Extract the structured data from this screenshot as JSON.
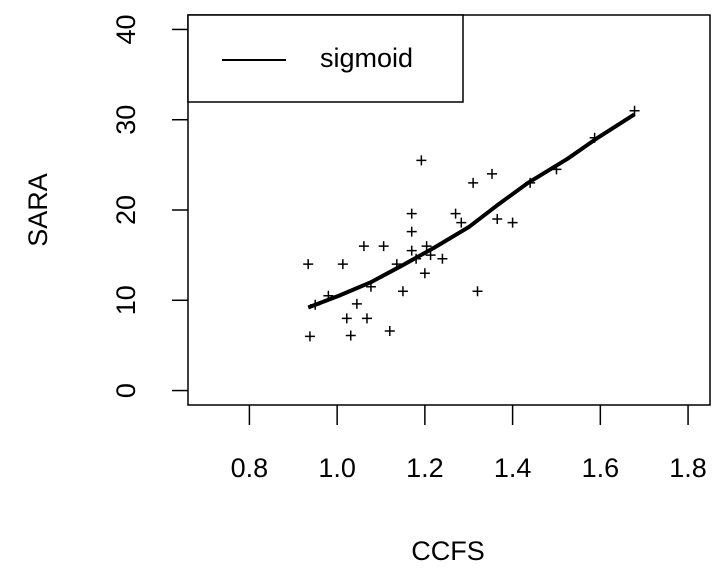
{
  "chart_data": {
    "type": "scatter",
    "xlabel": "CCFS",
    "ylabel": "SARA",
    "xlim": [
      0.66,
      1.85
    ],
    "ylim": [
      -1.6,
      41.6
    ],
    "xticks": [
      0.8,
      {
        "value": 1,
        "label": "1.0"
      },
      1.2,
      1.4,
      1.6,
      1.8
    ],
    "yticks": [
      0,
      10,
      20,
      30,
      40
    ],
    "legend": "topleft",
    "points": {
      "color": "#000000",
      "marker": "+",
      "x": [
        0.934,
        0.938,
        0.95,
        0.98,
        1.013,
        1.022,
        1.031,
        1.045,
        1.061,
        1.068,
        1.077,
        1.106,
        1.12,
        1.136,
        1.15,
        1.17,
        1.17,
        1.17,
        1.18,
        1.192,
        1.2,
        1.204,
        1.213,
        1.24,
        1.27,
        1.283,
        1.31,
        1.32,
        1.353,
        1.365,
        1.4,
        1.44,
        1.5,
        1.587,
        1.678
      ],
      "values": [
        14,
        6,
        9.5,
        10.5,
        14,
        8,
        6.1,
        9.6,
        16,
        8,
        11.5,
        16,
        6.6,
        14,
        11,
        19.6,
        17.6,
        15.5,
        14.6,
        25.5,
        13,
        16,
        15,
        14.6,
        19.6,
        18.6,
        23,
        11,
        24,
        19,
        18.6,
        23,
        24.5,
        28,
        31
      ]
    },
    "series": [
      {
        "name": "sigmoid",
        "color": "#000000",
        "x": [
          0.934,
          1.004,
          1.077,
          1.15,
          1.224,
          1.3,
          1.367,
          1.435,
          1.526,
          1.594,
          1.678
        ],
        "values": [
          9.2,
          10.5,
          12,
          13.9,
          15.9,
          18.1,
          20.6,
          23,
          25.7,
          28,
          30.6
        ]
      }
    ]
  }
}
